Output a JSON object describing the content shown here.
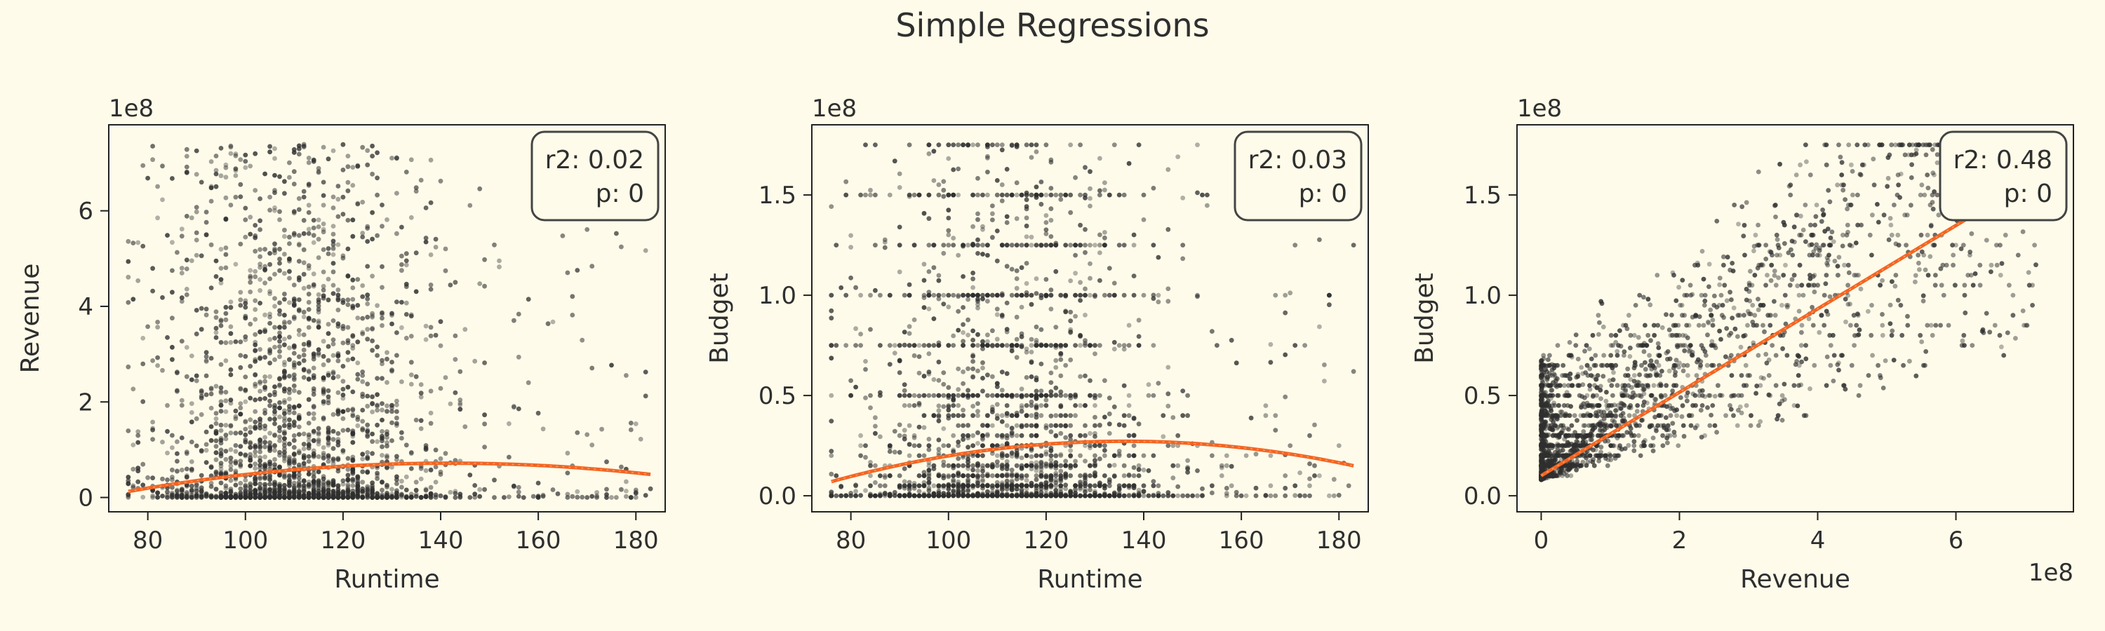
{
  "figure": {
    "title": "Simple Regressions",
    "background": "#fefbea",
    "point_color": "#2f2f2f",
    "fit_color": "#f26522"
  },
  "chart_data": [
    {
      "type": "scatter",
      "xlabel": "Runtime",
      "ylabel": "Revenue",
      "xlim": [
        72,
        186
      ],
      "ylim": [
        -0.3,
        7.8
      ],
      "xticks": [
        80,
        100,
        120,
        140,
        160,
        180
      ],
      "xtick_labels": [
        "80",
        "100",
        "120",
        "140",
        "160",
        "180"
      ],
      "yticks": [
        0,
        2,
        4,
        6
      ],
      "ytick_labels": [
        "0",
        "2",
        "4",
        "6"
      ],
      "y_offset": "1e8",
      "x_offset": "",
      "grid": false,
      "annotation": {
        "r2": "r2: 0.02",
        "p": "p: 0"
      },
      "fit": {
        "kind": "quadratic",
        "x": [
          76,
          100,
          125,
          148,
          183
        ],
        "y": [
          0.13,
          0.47,
          0.68,
          0.72,
          0.48
        ]
      },
      "points_summary": {
        "x_range": [
          76,
          183
        ],
        "x_dense_range": [
          85,
          135
        ],
        "y_range": [
          0,
          7.4
        ],
        "description": "dense cluster near 0-1.5, sparse points up to 7.3"
      }
    },
    {
      "type": "scatter",
      "xlabel": "Runtime",
      "ylabel": "Budget",
      "xlim": [
        72,
        186
      ],
      "ylim": [
        -0.08,
        1.85
      ],
      "xticks": [
        80,
        100,
        120,
        140,
        160,
        180
      ],
      "xtick_labels": [
        "80",
        "100",
        "120",
        "140",
        "160",
        "180"
      ],
      "yticks": [
        0,
        0.5,
        1.0,
        1.5
      ],
      "ytick_labels": [
        "0.0",
        "0.5",
        "1.0",
        "1.5"
      ],
      "y_offset": "1e8",
      "x_offset": "",
      "grid": false,
      "annotation": {
        "r2": "r2: 0.03",
        "p": "p: 0"
      },
      "fit": {
        "kind": "quadratic",
        "x": [
          76,
          100,
          130,
          140,
          183
        ],
        "y": [
          0.07,
          0.2,
          0.27,
          0.27,
          0.15
        ]
      },
      "points_summary": {
        "x_range": [
          76,
          183
        ],
        "x_dense_range": [
          85,
          140
        ],
        "y_range": [
          0,
          1.75
        ],
        "description": "horizontal banding at round budget values, dense below 0.5"
      }
    },
    {
      "type": "scatter",
      "xlabel": "Revenue",
      "ylabel": "Budget",
      "xlim": [
        -0.35,
        7.7
      ],
      "ylim": [
        -0.08,
        1.85
      ],
      "xticks": [
        0,
        2,
        4,
        6
      ],
      "xtick_labels": [
        "0",
        "2",
        "4",
        "6"
      ],
      "yticks": [
        0,
        0.5,
        1.0,
        1.5
      ],
      "ytick_labels": [
        "0.0",
        "0.5",
        "1.0",
        "1.5"
      ],
      "y_offset": "1e8",
      "x_offset": "1e8",
      "grid": false,
      "annotation": {
        "r2": "r2: 0.48",
        "p": "p: 0"
      },
      "fit": {
        "kind": "linear",
        "x": [
          0,
          6.25
        ],
        "y": [
          0.1,
          1.4
        ]
      },
      "points_summary": {
        "x_range": [
          0,
          7.2
        ],
        "x_dense_range": [
          0,
          1.5
        ],
        "y_range": [
          0,
          1.75
        ],
        "description": "dense near origin, fanning out to the right"
      }
    }
  ]
}
